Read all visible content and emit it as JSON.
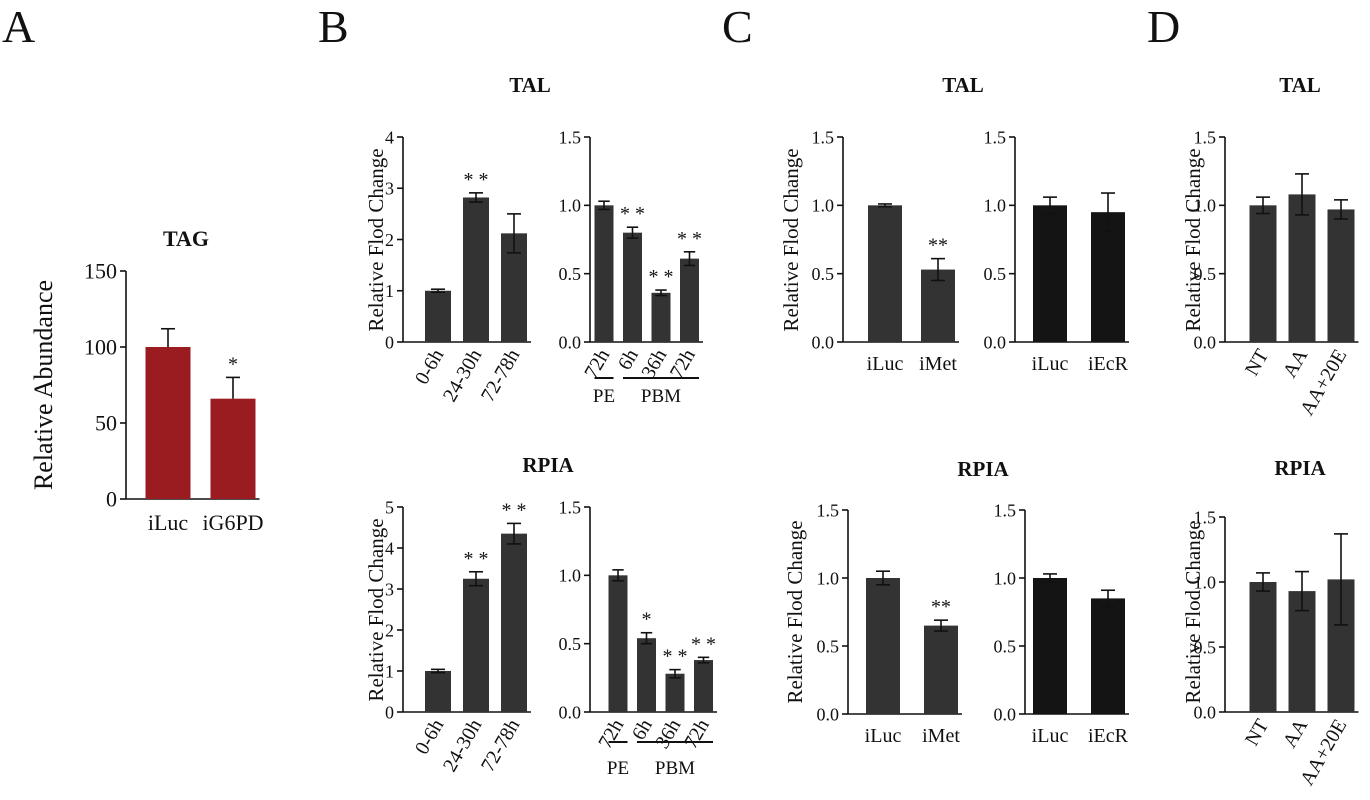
{
  "panel_letters": [
    "A",
    "B",
    "C",
    "D"
  ],
  "chart_data": [
    {
      "id": "A-TAG",
      "type": "bar",
      "title": "TAG",
      "ylabel": "Relative Abundance",
      "ylim": [
        0,
        150
      ],
      "yticks": [
        "0",
        "50",
        "100",
        "150"
      ],
      "categories": [
        "iLuc",
        "iG6PD"
      ],
      "values": [
        100,
        66
      ],
      "errors": [
        12,
        14
      ],
      "signif": [
        "",
        "*"
      ],
      "bar_color": "#9b1c20"
    },
    {
      "id": "B-TAL-1",
      "type": "bar",
      "title": "TAL",
      "ylabel": "Relative Flod Change",
      "ylim": [
        0,
        4
      ],
      "yticks": [
        "0",
        "1",
        "2",
        "3",
        "4"
      ],
      "categories": [
        "0-6h",
        "24-30h",
        "72-78h"
      ],
      "values": [
        1.0,
        2.82,
        2.12
      ],
      "errors": [
        0.03,
        0.09,
        0.38
      ],
      "signif": [
        "",
        "* *",
        ""
      ],
      "bar_color": "#333333"
    },
    {
      "id": "B-TAL-2",
      "type": "bar",
      "title": "",
      "ylabel": "",
      "ylim": [
        0,
        1.5
      ],
      "yticks": [
        "0.0",
        "0.5",
        "1.0",
        "1.5"
      ],
      "categories": [
        "72h",
        "6h",
        "36h",
        "72h"
      ],
      "values": [
        1.0,
        0.8,
        0.36,
        0.61
      ],
      "errors": [
        0.03,
        0.04,
        0.02,
        0.05
      ],
      "signif": [
        "",
        "* *",
        "* *",
        "* *"
      ],
      "bar_color": "#333333",
      "groups": [
        {
          "label": "PE",
          "span": [
            0,
            0
          ]
        },
        {
          "label": "PBM",
          "span": [
            1,
            3
          ]
        }
      ]
    },
    {
      "id": "B-RPIA-1",
      "type": "bar",
      "title": "RPIA",
      "ylabel": "Relative Flod Change",
      "ylim": [
        0,
        5
      ],
      "yticks": [
        "0",
        "1",
        "2",
        "3",
        "4",
        "5"
      ],
      "categories": [
        "0-6h",
        "24-30h",
        "72-78h"
      ],
      "values": [
        1.0,
        3.25,
        4.35
      ],
      "errors": [
        0.04,
        0.17,
        0.25
      ],
      "signif": [
        "",
        "* *",
        "* *"
      ],
      "bar_color": "#333333"
    },
    {
      "id": "B-RPIA-2",
      "type": "bar",
      "title": "",
      "ylabel": "",
      "ylim": [
        0,
        1.5
      ],
      "yticks": [
        "0.0",
        "0.5",
        "1.0",
        "1.5"
      ],
      "categories": [
        "72h",
        "6h",
        "36h",
        "72h"
      ],
      "values": [
        1.0,
        0.54,
        0.28,
        0.38
      ],
      "errors": [
        0.04,
        0.04,
        0.03,
        0.02
      ],
      "signif": [
        "",
        "*",
        "* *",
        "* *"
      ],
      "bar_color": "#333333",
      "groups": [
        {
          "label": "PE",
          "span": [
            0,
            0
          ]
        },
        {
          "label": "PBM",
          "span": [
            1,
            3
          ]
        }
      ]
    },
    {
      "id": "C-TAL-1",
      "type": "bar",
      "title": "TAL",
      "ylabel": "Relative Flod Change",
      "ylim": [
        0,
        1.5
      ],
      "yticks": [
        "0.0",
        "0.5",
        "1.0",
        "1.5"
      ],
      "categories": [
        "iLuc",
        "iMet"
      ],
      "values": [
        1.0,
        0.53
      ],
      "errors": [
        0.01,
        0.08
      ],
      "signif": [
        "",
        "**"
      ],
      "bar_color": "#333333"
    },
    {
      "id": "C-TAL-2",
      "type": "bar",
      "title": "",
      "ylabel": "",
      "ylim": [
        0,
        1.5
      ],
      "yticks": [
        "0.0",
        "0.5",
        "1.0",
        "1.5"
      ],
      "categories": [
        "iLuc",
        "iEcR"
      ],
      "values": [
        1.0,
        0.95
      ],
      "errors": [
        0.06,
        0.14
      ],
      "signif": [
        "",
        ""
      ],
      "bar_color": "#141414"
    },
    {
      "id": "C-RPIA-1",
      "type": "bar",
      "title": "RPIA",
      "ylabel": "Relative Flod Change",
      "ylim": [
        0,
        1.5
      ],
      "yticks": [
        "0.0",
        "0.5",
        "1.0",
        "1.5"
      ],
      "categories": [
        "iLuc",
        "iMet"
      ],
      "values": [
        1.0,
        0.65
      ],
      "errors": [
        0.05,
        0.04
      ],
      "signif": [
        "",
        "**"
      ],
      "bar_color": "#333333"
    },
    {
      "id": "C-RPIA-2",
      "type": "bar",
      "title": "",
      "ylabel": "",
      "ylim": [
        0,
        1.5
      ],
      "yticks": [
        "0.0",
        "0.5",
        "1.0",
        "1.5"
      ],
      "categories": [
        "iLuc",
        "iEcR"
      ],
      "values": [
        1.0,
        0.85
      ],
      "errors": [
        0.03,
        0.06
      ],
      "signif": [
        "",
        ""
      ],
      "bar_color": "#141414"
    },
    {
      "id": "D-TAL",
      "type": "bar",
      "title": "TAL",
      "ylabel": "Relative Flod Change",
      "ylim": [
        0,
        1.5
      ],
      "yticks": [
        "0.0",
        "0.5",
        "1.0",
        "1.5"
      ],
      "categories": [
        "NT",
        "AA",
        "AA+20E"
      ],
      "values": [
        1.0,
        1.08,
        0.97
      ],
      "errors": [
        0.06,
        0.15,
        0.07
      ],
      "signif": [
        "",
        "",
        ""
      ],
      "bar_color": "#333333"
    },
    {
      "id": "D-RPIA",
      "type": "bar",
      "title": "RPIA",
      "ylabel": "Relative Flod Change",
      "ylim": [
        0,
        1.5
      ],
      "yticks": [
        "0.0",
        "0.5",
        "1.0",
        "1.5"
      ],
      "categories": [
        "NT",
        "AA",
        "AA+20E"
      ],
      "values": [
        1.0,
        0.93,
        1.02
      ],
      "errors": [
        0.07,
        0.15,
        0.35
      ],
      "signif": [
        "",
        "",
        ""
      ],
      "bar_color": "#333333"
    }
  ]
}
